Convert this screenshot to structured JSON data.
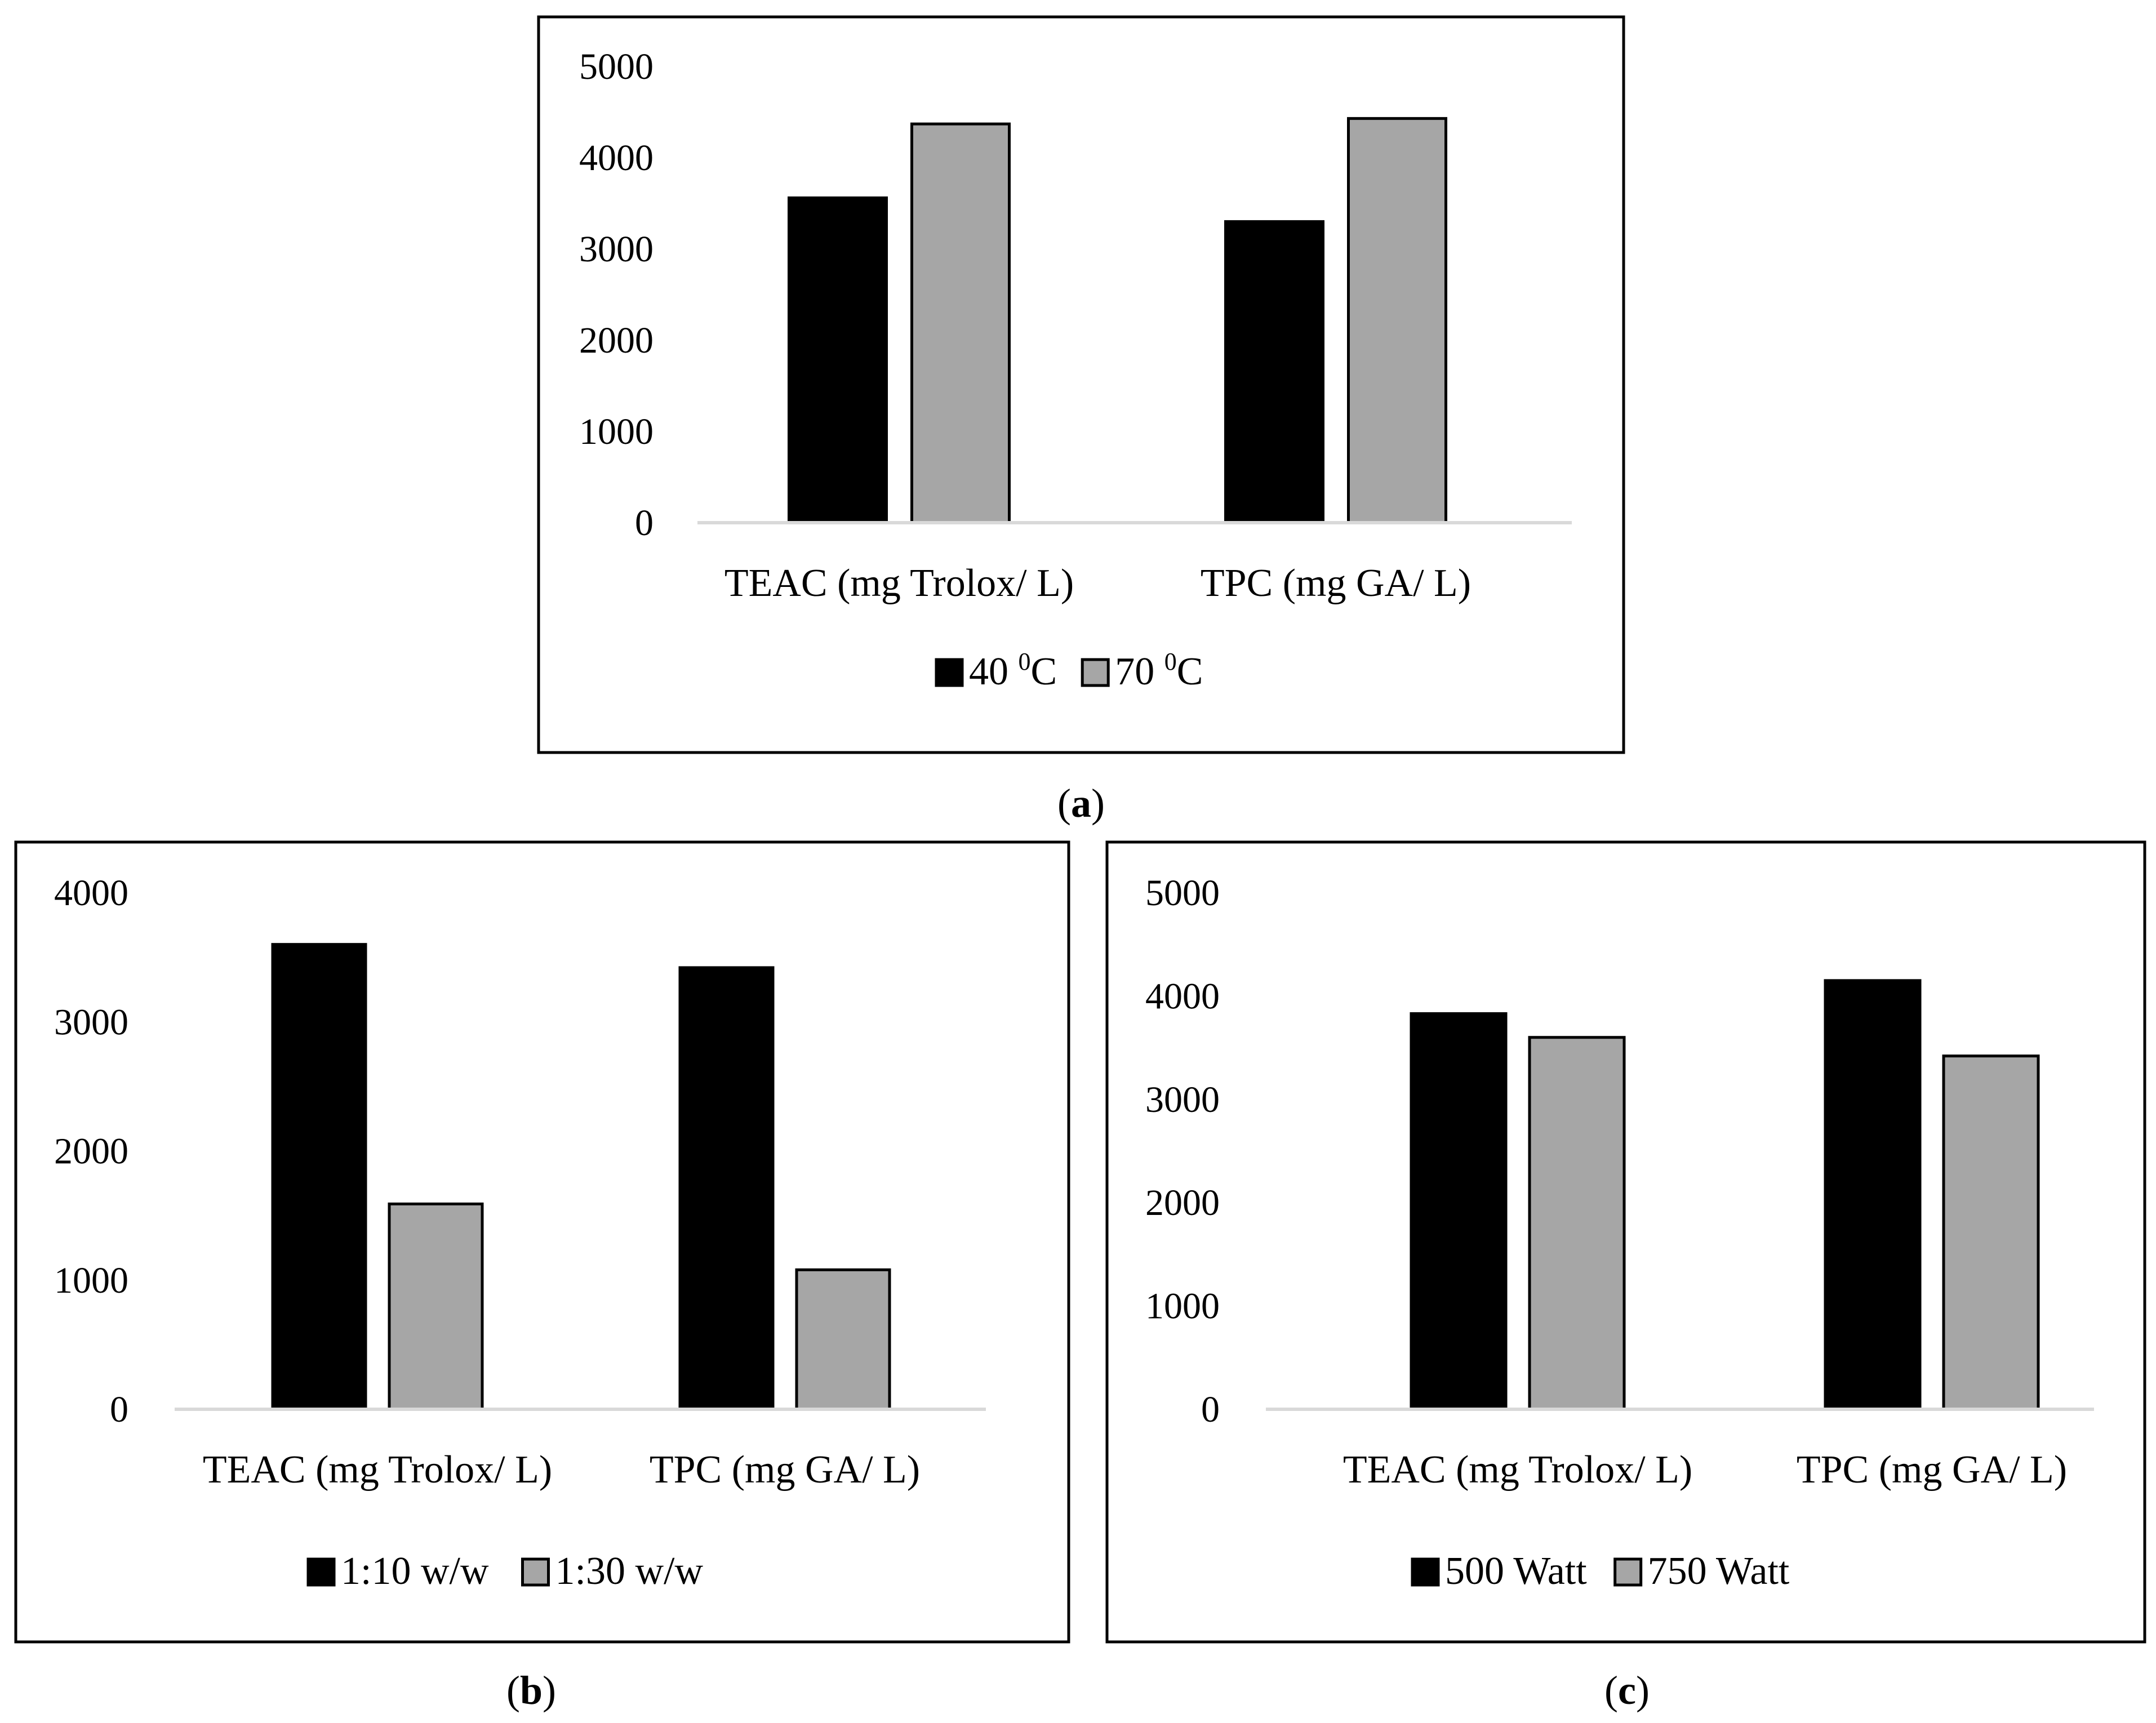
{
  "chart_data": [
    {
      "type": "bar",
      "panel_letter": "a",
      "categories": [
        "TEAC (mg Trolox/ L)",
        "TPC (mg GA/ L)"
      ],
      "series": [
        {
          "name": "40 ",
          "sup": "0",
          "unit": "C",
          "color": "#000000",
          "values": [
            3560,
            3300
          ]
        },
        {
          "name": "70 ",
          "sup": "0",
          "unit": "C",
          "color": "#a6a6a6",
          "values": [
            4370,
            4430
          ]
        }
      ],
      "yticks": [
        0,
        1000,
        2000,
        3000,
        4000,
        5000
      ],
      "ylim": [
        0,
        5000
      ],
      "legend_position": "bottom"
    },
    {
      "type": "bar",
      "panel_letter": "b",
      "categories": [
        "TEAC (mg Trolox/ L)",
        "TPC (mg GA/ L)"
      ],
      "series": [
        {
          "name": "1:10 w/w",
          "sup": "",
          "unit": "",
          "color": "#000000",
          "values": [
            3600,
            3420
          ]
        },
        {
          "name": "1:30 w/w",
          "sup": "",
          "unit": "",
          "color": "#a6a6a6",
          "values": [
            1590,
            1080
          ]
        }
      ],
      "yticks": [
        0,
        1000,
        2000,
        3000,
        4000
      ],
      "ylim": [
        0,
        4000
      ],
      "legend_position": "bottom"
    },
    {
      "type": "bar",
      "panel_letter": "c",
      "categories": [
        "TEAC (mg Trolox/ L)",
        "TPC (mg GA/ L)"
      ],
      "series": [
        {
          "name": "500 Watt",
          "sup": "",
          "unit": "",
          "color": "#000000",
          "values": [
            3830,
            4150
          ]
        },
        {
          "name": "750 Watt",
          "sup": "",
          "unit": "",
          "color": "#a6a6a6",
          "values": [
            3600,
            3420
          ]
        }
      ],
      "yticks": [
        0,
        1000,
        2000,
        3000,
        4000,
        5000
      ],
      "ylim": [
        0,
        5000
      ],
      "legend_position": "bottom"
    }
  ]
}
